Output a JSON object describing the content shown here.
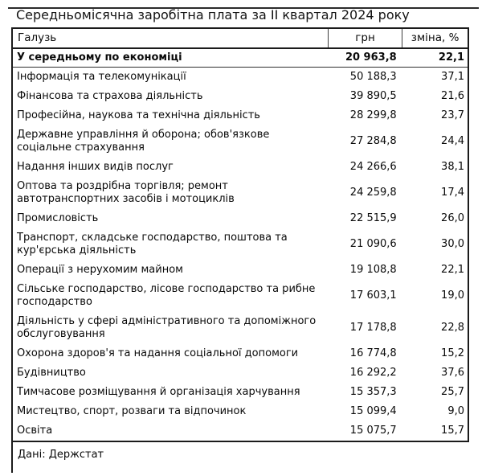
{
  "colors": {
    "background": "#ffffff",
    "text": "#0a0a0a",
    "border": "#1b1b1b"
  },
  "chart_data": {
    "type": "table",
    "title": "Середньомісячна заробітна плата за II квартал 2024 року",
    "columns": [
      "Галузь",
      "грн",
      "зміна, %"
    ],
    "summary_row": {
      "industry": "У середньому по економіці",
      "uah": "20 963,8",
      "change": "22,1"
    },
    "rows": [
      {
        "industry": "Інформація та телекомунікації",
        "uah": "50 188,3",
        "change": "37,1"
      },
      {
        "industry": "Фінансова та страхова діяльність",
        "uah": "39 890,5",
        "change": "21,6"
      },
      {
        "industry": "Професійна, наукова та технічна діяльність",
        "uah": "28 299,8",
        "change": "23,7"
      },
      {
        "industry": "Державне управління й оборона; обов'язкове соціальне страхування",
        "uah": "27 284,8",
        "change": "24,4"
      },
      {
        "industry": "Надання інших видів послуг",
        "uah": "24 266,6",
        "change": "38,1"
      },
      {
        "industry": "Оптова та роздрібна торгівля; ремонт автотранспортних засобів і мотоциклів",
        "uah": "24 259,8",
        "change": "17,4"
      },
      {
        "industry": "Промисловість",
        "uah": "22 515,9",
        "change": "26,0"
      },
      {
        "industry": "Транспорт, складське господарство, поштова та кур'єрська діяльність",
        "uah": "21 090,6",
        "change": "30,0"
      },
      {
        "industry": "Операції з нерухомим майном",
        "uah": "19 108,8",
        "change": "22,1"
      },
      {
        "industry": "Сільське господарство, лісове господарство та рибне господарство",
        "uah": "17 603,1",
        "change": "19,0"
      },
      {
        "industry": "Діяльність у сфері адміністративного та допоміжного обслуговування",
        "uah": "17 178,8",
        "change": "22,8"
      },
      {
        "industry": "Охорона здоров'я та надання соціальної допомоги",
        "uah": "16 774,8",
        "change": "15,2"
      },
      {
        "industry": "Будівництво",
        "uah": "16 292,2",
        "change": "37,6"
      },
      {
        "industry": "Тимчасове розміщування й організація харчування",
        "uah": "15 357,3",
        "change": "25,7"
      },
      {
        "industry": "Мистецтво, спорт, розваги та відпочинок",
        "uah": "15 099,4",
        "change": "9,0"
      },
      {
        "industry": "Освіта",
        "uah": "15 075,7",
        "change": "15,7"
      }
    ],
    "source": "Дані: Держстат"
  }
}
